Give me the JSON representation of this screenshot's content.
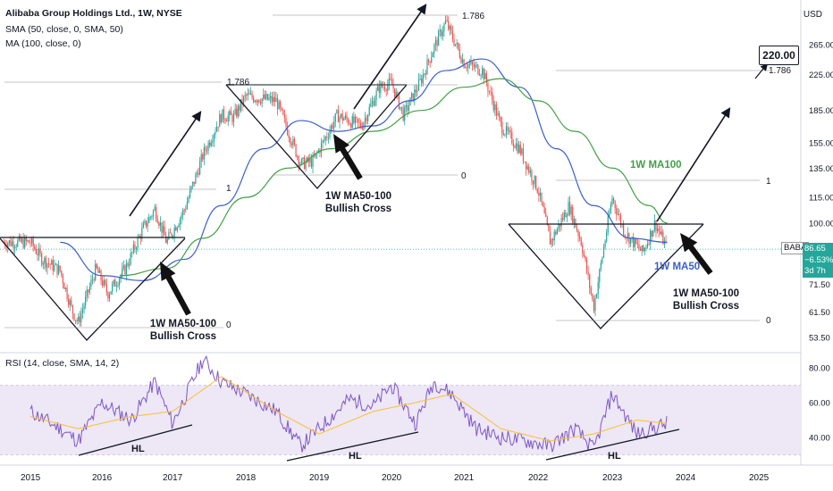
{
  "header": {
    "title": "Alibaba Group Holdings Ltd., 1W, NYSE",
    "indicator1": "SMA (50, close, 0, SMA, 50)",
    "indicator2": "MA (100, close, 0)",
    "rsi_label": "RSI (14, close, SMA, 14, 2)",
    "currency": "USD"
  },
  "price_tag": {
    "symbol": "BABA",
    "last": "86.65",
    "change": "−6.53%",
    "countdown": "3d 7h",
    "color": "#26a69a"
  },
  "target_label": "220.00",
  "annotations": {
    "cross1_line1": "1W MA50-100",
    "cross1_line2": "Bullish Cross",
    "cross2_line1": "1W MA50-100",
    "cross2_line2": "Bullish Cross",
    "cross3_line1": "1W MA50-100",
    "cross3_line2": "Bullish Cross",
    "ma100_label": "1W MA100",
    "ma50_label": "1W MA50",
    "hl_label": "HL",
    "fib_1786": "1.786",
    "fib_1": "1",
    "fib_0": "0"
  },
  "colors": {
    "up": "#26a69a",
    "down": "#ef5350",
    "ma50": "#3a5fcd",
    "ma100": "#43a047",
    "rsi": "#7e57c2",
    "rsi_ma": "#fbc02d",
    "rsi_band": "#ede7f6"
  },
  "chart_data": [
    {
      "type": "line",
      "title": "Alibaba Group Holdings Ltd., 1W, NYSE",
      "x_labels": [
        "2015",
        "2016",
        "2017",
        "2018",
        "2019",
        "2020",
        "2021",
        "2022",
        "2023",
        "2024",
        "2025"
      ],
      "y_ticks": [
        53.5,
        61.5,
        71.5,
        86.65,
        100.0,
        115.0,
        135.0,
        155.0,
        185.0,
        225.0,
        265.0
      ],
      "y_scale": "log",
      "ylim": [
        50,
        330
      ],
      "series": [
        {
          "name": "BABA",
          "x": [
            "2015-01",
            "2015-03",
            "2015-06",
            "2015-08",
            "2015-09",
            "2015-12",
            "2016-02",
            "2016-05",
            "2016-08",
            "2016-10",
            "2016-12",
            "2017-03",
            "2017-06",
            "2017-09",
            "2017-11",
            "2018-01",
            "2018-06",
            "2018-10",
            "2018-12",
            "2019-04",
            "2019-08",
            "2019-11",
            "2020-01",
            "2020-03",
            "2020-06",
            "2020-08",
            "2020-10",
            "2021-01",
            "2021-04",
            "2021-07",
            "2021-10",
            "2022-01",
            "2022-03",
            "2022-06",
            "2022-08",
            "2022-10",
            "2023-01",
            "2023-03",
            "2023-06",
            "2023-08",
            "2023-10"
          ],
          "values": [
            90,
            82,
            77,
            62,
            58,
            78,
            68,
            78,
            97,
            108,
            90,
            108,
            145,
            180,
            178,
            200,
            195,
            138,
            140,
            180,
            170,
            210,
            215,
            180,
            220,
            260,
            300,
            240,
            230,
            170,
            150,
            120,
            90,
            110,
            90,
            63,
            115,
            95,
            85,
            100,
            86.65
          ]
        },
        {
          "name": "SMA 50",
          "x": [
            "2015-06",
            "2016-01",
            "2016-08",
            "2017-03",
            "2017-09",
            "2018-04",
            "2018-10",
            "2019-04",
            "2019-10",
            "2020-04",
            "2020-10",
            "2021-04",
            "2021-10",
            "2022-04",
            "2022-10",
            "2023-04",
            "2023-10"
          ],
          "values": [
            90,
            75,
            73,
            82,
            110,
            150,
            175,
            165,
            170,
            195,
            230,
            245,
            210,
            150,
            110,
            92,
            90
          ]
        },
        {
          "name": "MA 100",
          "x": [
            "2016-04",
            "2016-12",
            "2017-06",
            "2018-01",
            "2018-08",
            "2019-03",
            "2019-10",
            "2020-06",
            "2021-01",
            "2021-07",
            "2022-01",
            "2022-07",
            "2023-01",
            "2023-07",
            "2023-10"
          ],
          "values": [
            75,
            78,
            92,
            115,
            135,
            150,
            165,
            185,
            210,
            220,
            195,
            165,
            135,
            110,
            100
          ]
        }
      ],
      "annotations": [
        "1.786",
        "1",
        "0",
        "220.00",
        "1W MA50-100 Bullish Cross",
        "1W MA100",
        "1W MA50"
      ]
    },
    {
      "type": "line",
      "title": "RSI (14, close, SMA, 14, 2)",
      "y_ticks": [
        40.0,
        60.0,
        80.0
      ],
      "ylim": [
        30,
        90
      ],
      "band": [
        30,
        70
      ],
      "series": [
        {
          "name": "RSI",
          "x": [
            "2015-01",
            "2015-06",
            "2015-09",
            "2016-01",
            "2016-06",
            "2016-10",
            "2017-01",
            "2017-06",
            "2017-09",
            "2018-01",
            "2018-06",
            "2018-10",
            "2019-01",
            "2019-06",
            "2019-10",
            "2020-01",
            "2020-05",
            "2020-08",
            "2020-11",
            "2021-03",
            "2021-07",
            "2021-11",
            "2022-03",
            "2022-07",
            "2022-10",
            "2023-01",
            "2023-05",
            "2023-10"
          ],
          "values": [
            55,
            45,
            38,
            60,
            50,
            72,
            48,
            85,
            72,
            65,
            55,
            35,
            45,
            62,
            58,
            70,
            48,
            72,
            65,
            45,
            40,
            38,
            35,
            45,
            33,
            65,
            42,
            48
          ]
        },
        {
          "name": "RSI-based MA",
          "x": [
            "2015-01",
            "2015-09",
            "2016-06",
            "2017-01",
            "2017-09",
            "2018-06",
            "2019-01",
            "2019-10",
            "2020-05",
            "2020-11",
            "2021-07",
            "2022-03",
            "2022-10",
            "2023-05",
            "2023-10"
          ],
          "values": [
            52,
            45,
            52,
            55,
            75,
            55,
            42,
            55,
            60,
            65,
            45,
            38,
            42,
            50,
            48
          ]
        }
      ]
    }
  ]
}
